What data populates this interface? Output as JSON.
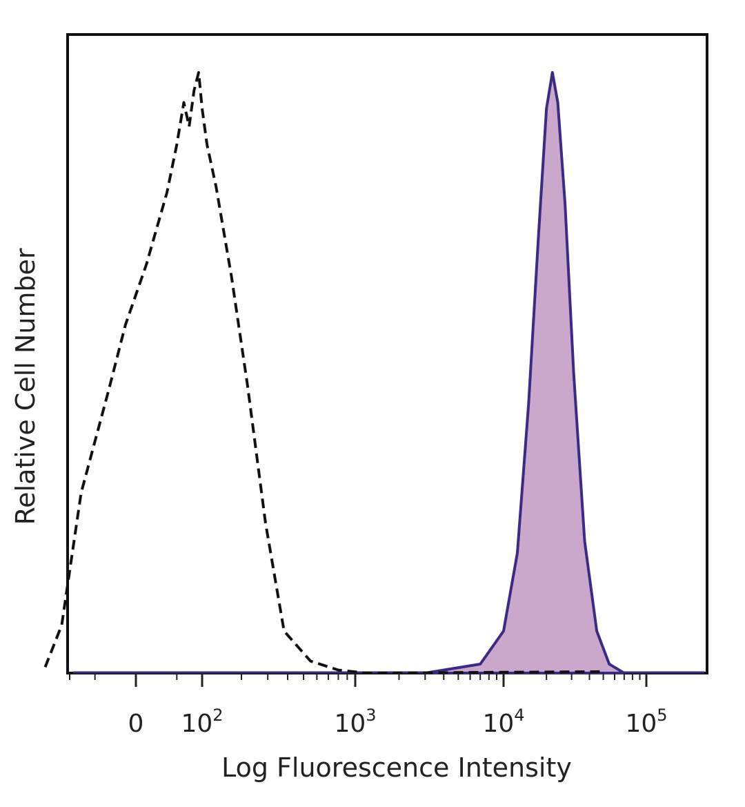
{
  "chart_data": {
    "type": "area",
    "xlabel": "Log Fluorescence Intensity",
    "ylabel": "Relative Cell Number",
    "xscale": "biexponential",
    "xlim": [
      -200,
      250000
    ],
    "ylim": [
      0,
      100
    ],
    "grid": false,
    "legend": "none",
    "x_ticks": [
      {
        "value": 0,
        "base": "0",
        "exp": ""
      },
      {
        "value": 100,
        "base": "10",
        "exp": "2"
      },
      {
        "value": 1000,
        "base": "10",
        "exp": "3"
      },
      {
        "value": 10000,
        "base": "10",
        "exp": "4"
      },
      {
        "value": 100000,
        "base": "10",
        "exp": "5"
      }
    ],
    "series": [
      {
        "style": "dashed-outline",
        "color": "#111111",
        "points": [
          {
            "x": -170,
            "y": 1
          },
          {
            "x": -120,
            "y": 8
          },
          {
            "x": -75,
            "y": 30
          },
          {
            "x": -30,
            "y": 47
          },
          {
            "x": -10,
            "y": 58
          },
          {
            "x": 10,
            "y": 68
          },
          {
            "x": 35,
            "y": 80
          },
          {
            "x": 50,
            "y": 88
          },
          {
            "x": 62,
            "y": 95
          },
          {
            "x": 72,
            "y": 91
          },
          {
            "x": 82,
            "y": 97
          },
          {
            "x": 92,
            "y": 100
          },
          {
            "x": 100,
            "y": 94
          },
          {
            "x": 110,
            "y": 88
          },
          {
            "x": 130,
            "y": 81
          },
          {
            "x": 170,
            "y": 66
          },
          {
            "x": 220,
            "y": 48
          },
          {
            "x": 290,
            "y": 25
          },
          {
            "x": 380,
            "y": 7
          },
          {
            "x": 550,
            "y": 2
          },
          {
            "x": 800,
            "y": 0.5
          },
          {
            "x": 1200,
            "y": 0
          }
        ]
      },
      {
        "style": "filled",
        "color": "#3b2a86",
        "fill": "#c9a8cc",
        "points": [
          {
            "x": 3000,
            "y": 0
          },
          {
            "x": 7000,
            "y": 1.5
          },
          {
            "x": 10000,
            "y": 7
          },
          {
            "x": 12500,
            "y": 20
          },
          {
            "x": 15000,
            "y": 45
          },
          {
            "x": 17500,
            "y": 72
          },
          {
            "x": 20000,
            "y": 94
          },
          {
            "x": 22000,
            "y": 100
          },
          {
            "x": 24000,
            "y": 95
          },
          {
            "x": 27000,
            "y": 78
          },
          {
            "x": 31000,
            "y": 50
          },
          {
            "x": 37000,
            "y": 22
          },
          {
            "x": 45000,
            "y": 7
          },
          {
            "x": 55000,
            "y": 1.5
          },
          {
            "x": 70000,
            "y": 0
          }
        ]
      }
    ]
  }
}
